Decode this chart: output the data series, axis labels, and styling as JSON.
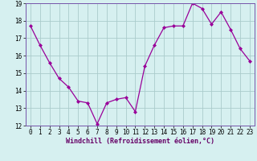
{
  "x": [
    0,
    1,
    2,
    3,
    4,
    5,
    6,
    7,
    8,
    9,
    10,
    11,
    12,
    13,
    14,
    15,
    16,
    17,
    18,
    19,
    20,
    21,
    22,
    23
  ],
  "y": [
    17.7,
    16.6,
    15.6,
    14.7,
    14.2,
    13.4,
    13.3,
    12.1,
    13.3,
    13.5,
    13.6,
    12.8,
    15.4,
    16.6,
    17.6,
    17.7,
    17.7,
    19.0,
    18.7,
    17.8,
    18.5,
    17.5,
    16.4,
    15.7
  ],
  "line_color": "#990099",
  "marker": "D",
  "marker_size": 2,
  "bg_color": "#d6f0f0",
  "grid_color": "#aacccc",
  "xlabel": "Windchill (Refroidissement éolien,°C)",
  "xlabel_fontsize": 6.0,
  "tick_fontsize": 5.5,
  "ylim": [
    12,
    19
  ],
  "xlim": [
    -0.5,
    23.5
  ],
  "yticks": [
    12,
    13,
    14,
    15,
    16,
    17,
    18,
    19
  ],
  "xticks": [
    0,
    1,
    2,
    3,
    4,
    5,
    6,
    7,
    8,
    9,
    10,
    11,
    12,
    13,
    14,
    15,
    16,
    17,
    18,
    19,
    20,
    21,
    22,
    23
  ],
  "spine_color": "#7755aa"
}
